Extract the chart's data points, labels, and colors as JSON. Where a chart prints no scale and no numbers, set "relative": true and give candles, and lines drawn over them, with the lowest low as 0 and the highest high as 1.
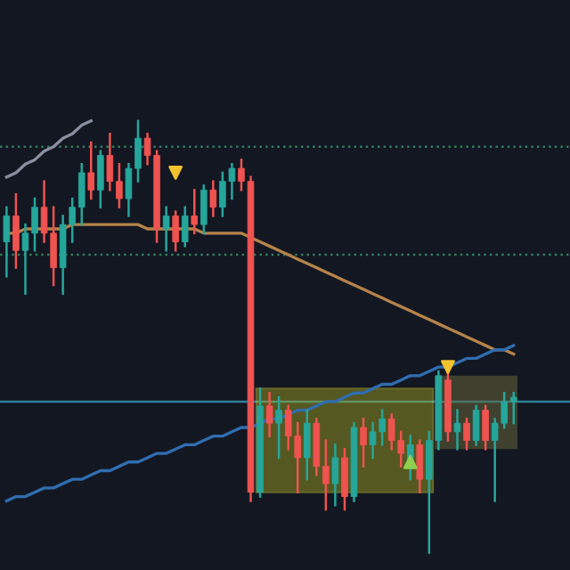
{
  "chart_data": {
    "type": "candlestick",
    "relative": true,
    "categories": [
      null,
      null,
      null,
      null,
      null,
      null,
      null,
      null,
      null,
      null,
      null,
      null,
      null,
      null,
      null,
      null,
      null,
      null,
      null,
      null,
      null,
      null,
      null,
      null,
      null,
      null,
      null,
      null,
      null,
      null,
      null,
      null,
      null,
      null,
      null,
      null,
      null,
      null,
      null,
      null,
      null,
      null,
      null,
      null,
      null,
      null,
      null,
      null,
      null,
      null,
      null,
      null,
      null,
      null,
      null
    ],
    "ohlc": [
      [
        0.72,
        0.8,
        0.64,
        0.78
      ],
      [
        0.78,
        0.83,
        0.66,
        0.7
      ],
      [
        0.7,
        0.76,
        0.6,
        0.74
      ],
      [
        0.74,
        0.82,
        0.7,
        0.8
      ],
      [
        0.8,
        0.86,
        0.72,
        0.74
      ],
      [
        0.74,
        0.8,
        0.62,
        0.66
      ],
      [
        0.66,
        0.78,
        0.6,
        0.76
      ],
      [
        0.76,
        0.82,
        0.72,
        0.8
      ],
      [
        0.8,
        0.9,
        0.76,
        0.88
      ],
      [
        0.88,
        0.95,
        0.82,
        0.84
      ],
      [
        0.84,
        0.93,
        0.8,
        0.92
      ],
      [
        0.92,
        0.97,
        0.84,
        0.86
      ],
      [
        0.86,
        0.9,
        0.8,
        0.82
      ],
      [
        0.82,
        0.9,
        0.78,
        0.89
      ],
      [
        0.89,
        1.0,
        0.86,
        0.96
      ],
      [
        0.96,
        0.97,
        0.9,
        0.92
      ],
      [
        0.92,
        0.93,
        0.72,
        0.75
      ],
      [
        0.75,
        0.8,
        0.7,
        0.78
      ],
      [
        0.78,
        0.79,
        0.7,
        0.72
      ],
      [
        0.72,
        0.8,
        0.71,
        0.78
      ],
      [
        0.78,
        0.84,
        0.74,
        0.76
      ],
      [
        0.76,
        0.85,
        0.74,
        0.84
      ],
      [
        0.84,
        0.86,
        0.78,
        0.8
      ],
      [
        0.8,
        0.88,
        0.78,
        0.86
      ],
      [
        0.86,
        0.9,
        0.82,
        0.89
      ],
      [
        0.89,
        0.91,
        0.84,
        0.86
      ],
      [
        0.86,
        0.87,
        0.12,
        0.14
      ],
      [
        0.14,
        0.38,
        0.13,
        0.34
      ],
      [
        0.34,
        0.37,
        0.27,
        0.3
      ],
      [
        0.3,
        0.36,
        0.22,
        0.33
      ],
      [
        0.33,
        0.34,
        0.24,
        0.27
      ],
      [
        0.27,
        0.3,
        0.14,
        0.22
      ],
      [
        0.22,
        0.33,
        0.17,
        0.3
      ],
      [
        0.3,
        0.31,
        0.18,
        0.2
      ],
      [
        0.2,
        0.26,
        0.1,
        0.16
      ],
      [
        0.16,
        0.25,
        0.11,
        0.22
      ],
      [
        0.22,
        0.24,
        0.1,
        0.13
      ],
      [
        0.13,
        0.3,
        0.12,
        0.29
      ],
      [
        0.29,
        0.31,
        0.2,
        0.25
      ],
      [
        0.25,
        0.3,
        0.22,
        0.28
      ],
      [
        0.28,
        0.33,
        0.25,
        0.31
      ],
      [
        0.31,
        0.32,
        0.24,
        0.26
      ],
      [
        0.26,
        0.28,
        0.2,
        0.23
      ],
      [
        0.2,
        0.27,
        0.17,
        0.25
      ],
      [
        0.25,
        0.26,
        0.14,
        0.17
      ],
      [
        0.17,
        0.28,
        0.0,
        0.26
      ],
      [
        0.26,
        0.42,
        0.24,
        0.41
      ],
      [
        0.4,
        0.42,
        0.26,
        0.28
      ],
      [
        0.28,
        0.33,
        0.24,
        0.3
      ],
      [
        0.3,
        0.31,
        0.24,
        0.26
      ],
      [
        0.26,
        0.34,
        0.25,
        0.33
      ],
      [
        0.33,
        0.34,
        0.24,
        0.26
      ],
      [
        0.26,
        0.31,
        0.12,
        0.3
      ],
      [
        0.3,
        0.37,
        0.29,
        0.35
      ],
      [
        0.35,
        0.37,
        0.3,
        0.36
      ]
    ],
    "series": [
      {
        "type": "line",
        "color": "#b5834a",
        "values": [
          0.74,
          0.74,
          0.75,
          0.75,
          0.75,
          0.75,
          0.75,
          0.76,
          0.76,
          0.76,
          0.76,
          0.76,
          0.76,
          0.76,
          0.76,
          0.75,
          0.75,
          0.75,
          0.75,
          0.75,
          0.75,
          0.74,
          0.74,
          0.74,
          0.74,
          0.74,
          0.73,
          0.72,
          0.71,
          0.7,
          0.69,
          0.68,
          0.67,
          0.66,
          0.65,
          0.64,
          0.63,
          0.62,
          0.61,
          0.6,
          0.59,
          0.58,
          0.57,
          0.56,
          0.55,
          0.54,
          0.53,
          0.52,
          0.51,
          0.5,
          0.49,
          0.48,
          0.47,
          0.47,
          0.46
        ]
      },
      {
        "type": "line",
        "color": "#2f6db0",
        "values": [
          0.12,
          0.13,
          0.13,
          0.14,
          0.15,
          0.15,
          0.16,
          0.17,
          0.17,
          0.18,
          0.19,
          0.19,
          0.2,
          0.21,
          0.21,
          0.22,
          0.23,
          0.23,
          0.24,
          0.25,
          0.25,
          0.26,
          0.27,
          0.27,
          0.28,
          0.29,
          0.29,
          0.3,
          0.31,
          0.31,
          0.32,
          0.33,
          0.33,
          0.34,
          0.35,
          0.35,
          0.36,
          0.37,
          0.37,
          0.38,
          0.39,
          0.39,
          0.4,
          0.41,
          0.41,
          0.42,
          0.43,
          0.43,
          0.44,
          0.45,
          0.45,
          0.46,
          0.47,
          0.47,
          0.48
        ]
      },
      {
        "type": "line",
        "color": "#8a8fa0",
        "values": [
          0.87,
          0.88,
          0.9,
          0.91,
          0.93,
          0.94,
          0.96,
          0.97,
          0.99,
          1.0,
          null,
          null,
          null,
          null,
          null,
          null,
          null,
          null,
          null,
          null,
          null,
          null,
          null,
          null,
          null,
          null,
          null,
          null,
          null,
          null,
          null,
          null,
          null,
          null,
          null,
          null,
          null,
          null,
          null,
          null,
          null,
          null,
          null,
          null,
          null,
          null,
          null,
          null,
          null,
          null,
          null,
          null,
          null,
          null,
          null
        ]
      },
      {
        "type": "scatter",
        "marker": "triangle_down",
        "color": "#f2c12e",
        "values": [
          null,
          null,
          null,
          null,
          null,
          null,
          null,
          null,
          null,
          null,
          null,
          null,
          null,
          null,
          null,
          null,
          null,
          null,
          0.88,
          null,
          null,
          null,
          null,
          null,
          null,
          null,
          null,
          null,
          null,
          null,
          null,
          null,
          null,
          null,
          null,
          null,
          null,
          null,
          null,
          null,
          null,
          null,
          null,
          null,
          null,
          null,
          null,
          0.43,
          null,
          null,
          null,
          null,
          null,
          null,
          null
        ]
      },
      {
        "type": "scatter",
        "marker": "triangle",
        "color": "#8fd14f",
        "values": [
          null,
          null,
          null,
          null,
          null,
          null,
          null,
          null,
          null,
          null,
          null,
          null,
          null,
          null,
          null,
          null,
          null,
          null,
          null,
          null,
          null,
          null,
          null,
          null,
          null,
          null,
          null,
          null,
          null,
          null,
          null,
          null,
          null,
          null,
          null,
          null,
          null,
          null,
          null,
          null,
          null,
          null,
          null,
          0.21,
          null,
          null,
          null,
          null,
          null,
          null,
          null,
          null,
          null,
          null,
          null
        ]
      }
    ],
    "ref_lines": [
      {
        "axis": "y",
        "value": 0.94,
        "color": "#2e7d5b",
        "line_style": "dotted"
      },
      {
        "axis": "y",
        "value": 0.69,
        "color": "#2e7d5b",
        "line_style": "dotted"
      },
      {
        "axis": "y",
        "value": 0.35,
        "color": "#2f7f96",
        "line_style": "solid"
      }
    ],
    "grid": false,
    "legend": false
  }
}
